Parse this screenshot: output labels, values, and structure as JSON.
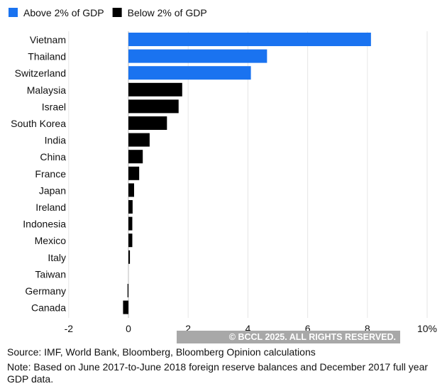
{
  "chart_data": {
    "type": "bar",
    "orientation": "horizontal",
    "categories": [
      "Vietnam",
      "Thailand",
      "Switzerland",
      "Malaysia",
      "Israel",
      "South Korea",
      "India",
      "China",
      "France",
      "Japan",
      "Ireland",
      "Indonesia",
      "Mexico",
      "Italy",
      "Taiwan",
      "Germany",
      "Canada"
    ],
    "values": [
      8.12,
      4.64,
      4.1,
      1.8,
      1.68,
      1.29,
      0.71,
      0.48,
      0.36,
      0.19,
      0.14,
      0.13,
      0.13,
      0.05,
      0,
      -0.03,
      -0.18
    ],
    "groups": [
      "above",
      "above",
      "above",
      "below",
      "below",
      "below",
      "below",
      "below",
      "below",
      "below",
      "below",
      "below",
      "below",
      "below",
      "below",
      "below",
      "below"
    ],
    "legend": [
      {
        "key": "above",
        "name": "Above 2% of GDP",
        "color": "#1a73f0"
      },
      {
        "key": "below",
        "name": "Below 2% of GDP",
        "color": "#000000"
      }
    ],
    "legend_placement": "top-left",
    "xlim": [
      -2,
      10
    ],
    "xticks": [
      -2,
      0,
      2,
      4,
      6,
      8,
      10
    ],
    "xtick_labels": [
      "-2",
      "0",
      "2",
      "4",
      "6",
      "8",
      "10%"
    ],
    "grid": true
  },
  "watermark": "© BCCL 2025. ALL RIGHTS RESERVED.",
  "source": "Source: IMF, World Bank, Bloomberg, Bloomberg Opinion calculations",
  "note": "Note: Based on June 2017-to-June 2018 foreign reserve balances and December 2017 full year GDP data."
}
